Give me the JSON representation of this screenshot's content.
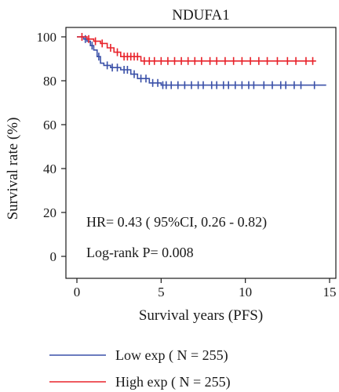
{
  "chart_data": {
    "type": "line",
    "subtype": "kaplan-meier",
    "title": "NDUFA1",
    "xlabel": "Survival years (PFS)",
    "ylabel": "Survival rate (%)",
    "xlim": [
      0,
      15
    ],
    "ylim": [
      0,
      100
    ],
    "xticks": [
      0,
      5,
      10,
      15
    ],
    "yticks": [
      0,
      20,
      40,
      60,
      80,
      100
    ],
    "grid": false,
    "legend_placement": "bottom",
    "annotations": [
      "HR= 0.43 ( 95%CI, 0.26 - 0.82)",
      "Log-rank P= 0.008"
    ],
    "series": [
      {
        "name": "Low exp ( N = 255)",
        "color": "#3a50a8",
        "steps": [
          [
            0,
            100
          ],
          [
            0.4,
            99
          ],
          [
            0.6,
            98
          ],
          [
            0.8,
            96
          ],
          [
            1.0,
            94
          ],
          [
            1.2,
            91
          ],
          [
            1.4,
            88
          ],
          [
            1.6,
            87
          ],
          [
            2.0,
            86
          ],
          [
            2.6,
            85
          ],
          [
            3.2,
            83
          ],
          [
            3.6,
            81
          ],
          [
            4.3,
            79
          ],
          [
            5.0,
            78
          ],
          [
            14.8,
            78
          ]
        ],
        "censor_x": [
          0.5,
          0.9,
          1.3,
          1.8,
          2.1,
          2.4,
          2.8,
          3.0,
          3.4,
          3.8,
          4.1,
          4.5,
          4.8,
          5.1,
          5.3,
          5.6,
          6.0,
          6.4,
          6.8,
          7.2,
          7.5,
          8.0,
          8.3,
          8.7,
          9.0,
          9.4,
          9.8,
          10.2,
          10.5,
          11.1,
          11.6,
          12.1,
          12.4,
          12.9,
          13.3,
          14.1
        ]
      },
      {
        "name": "High exp ( N = 255)",
        "color": "#e8232b",
        "steps": [
          [
            0,
            100
          ],
          [
            0.6,
            99
          ],
          [
            1.0,
            98
          ],
          [
            1.4,
            97
          ],
          [
            1.8,
            95
          ],
          [
            2.2,
            93
          ],
          [
            2.6,
            91
          ],
          [
            3.8,
            89
          ],
          [
            14.2,
            89
          ]
        ],
        "censor_x": [
          0.3,
          0.7,
          1.1,
          1.5,
          2.0,
          2.4,
          2.8,
          3.0,
          3.2,
          3.4,
          3.6,
          4.0,
          4.3,
          4.6,
          5.0,
          5.4,
          5.8,
          6.2,
          6.6,
          7.0,
          7.4,
          7.9,
          8.3,
          8.8,
          9.3,
          9.8,
          10.3,
          10.8,
          11.3,
          11.9,
          12.5,
          13.0,
          13.6,
          14.0
        ]
      }
    ]
  }
}
